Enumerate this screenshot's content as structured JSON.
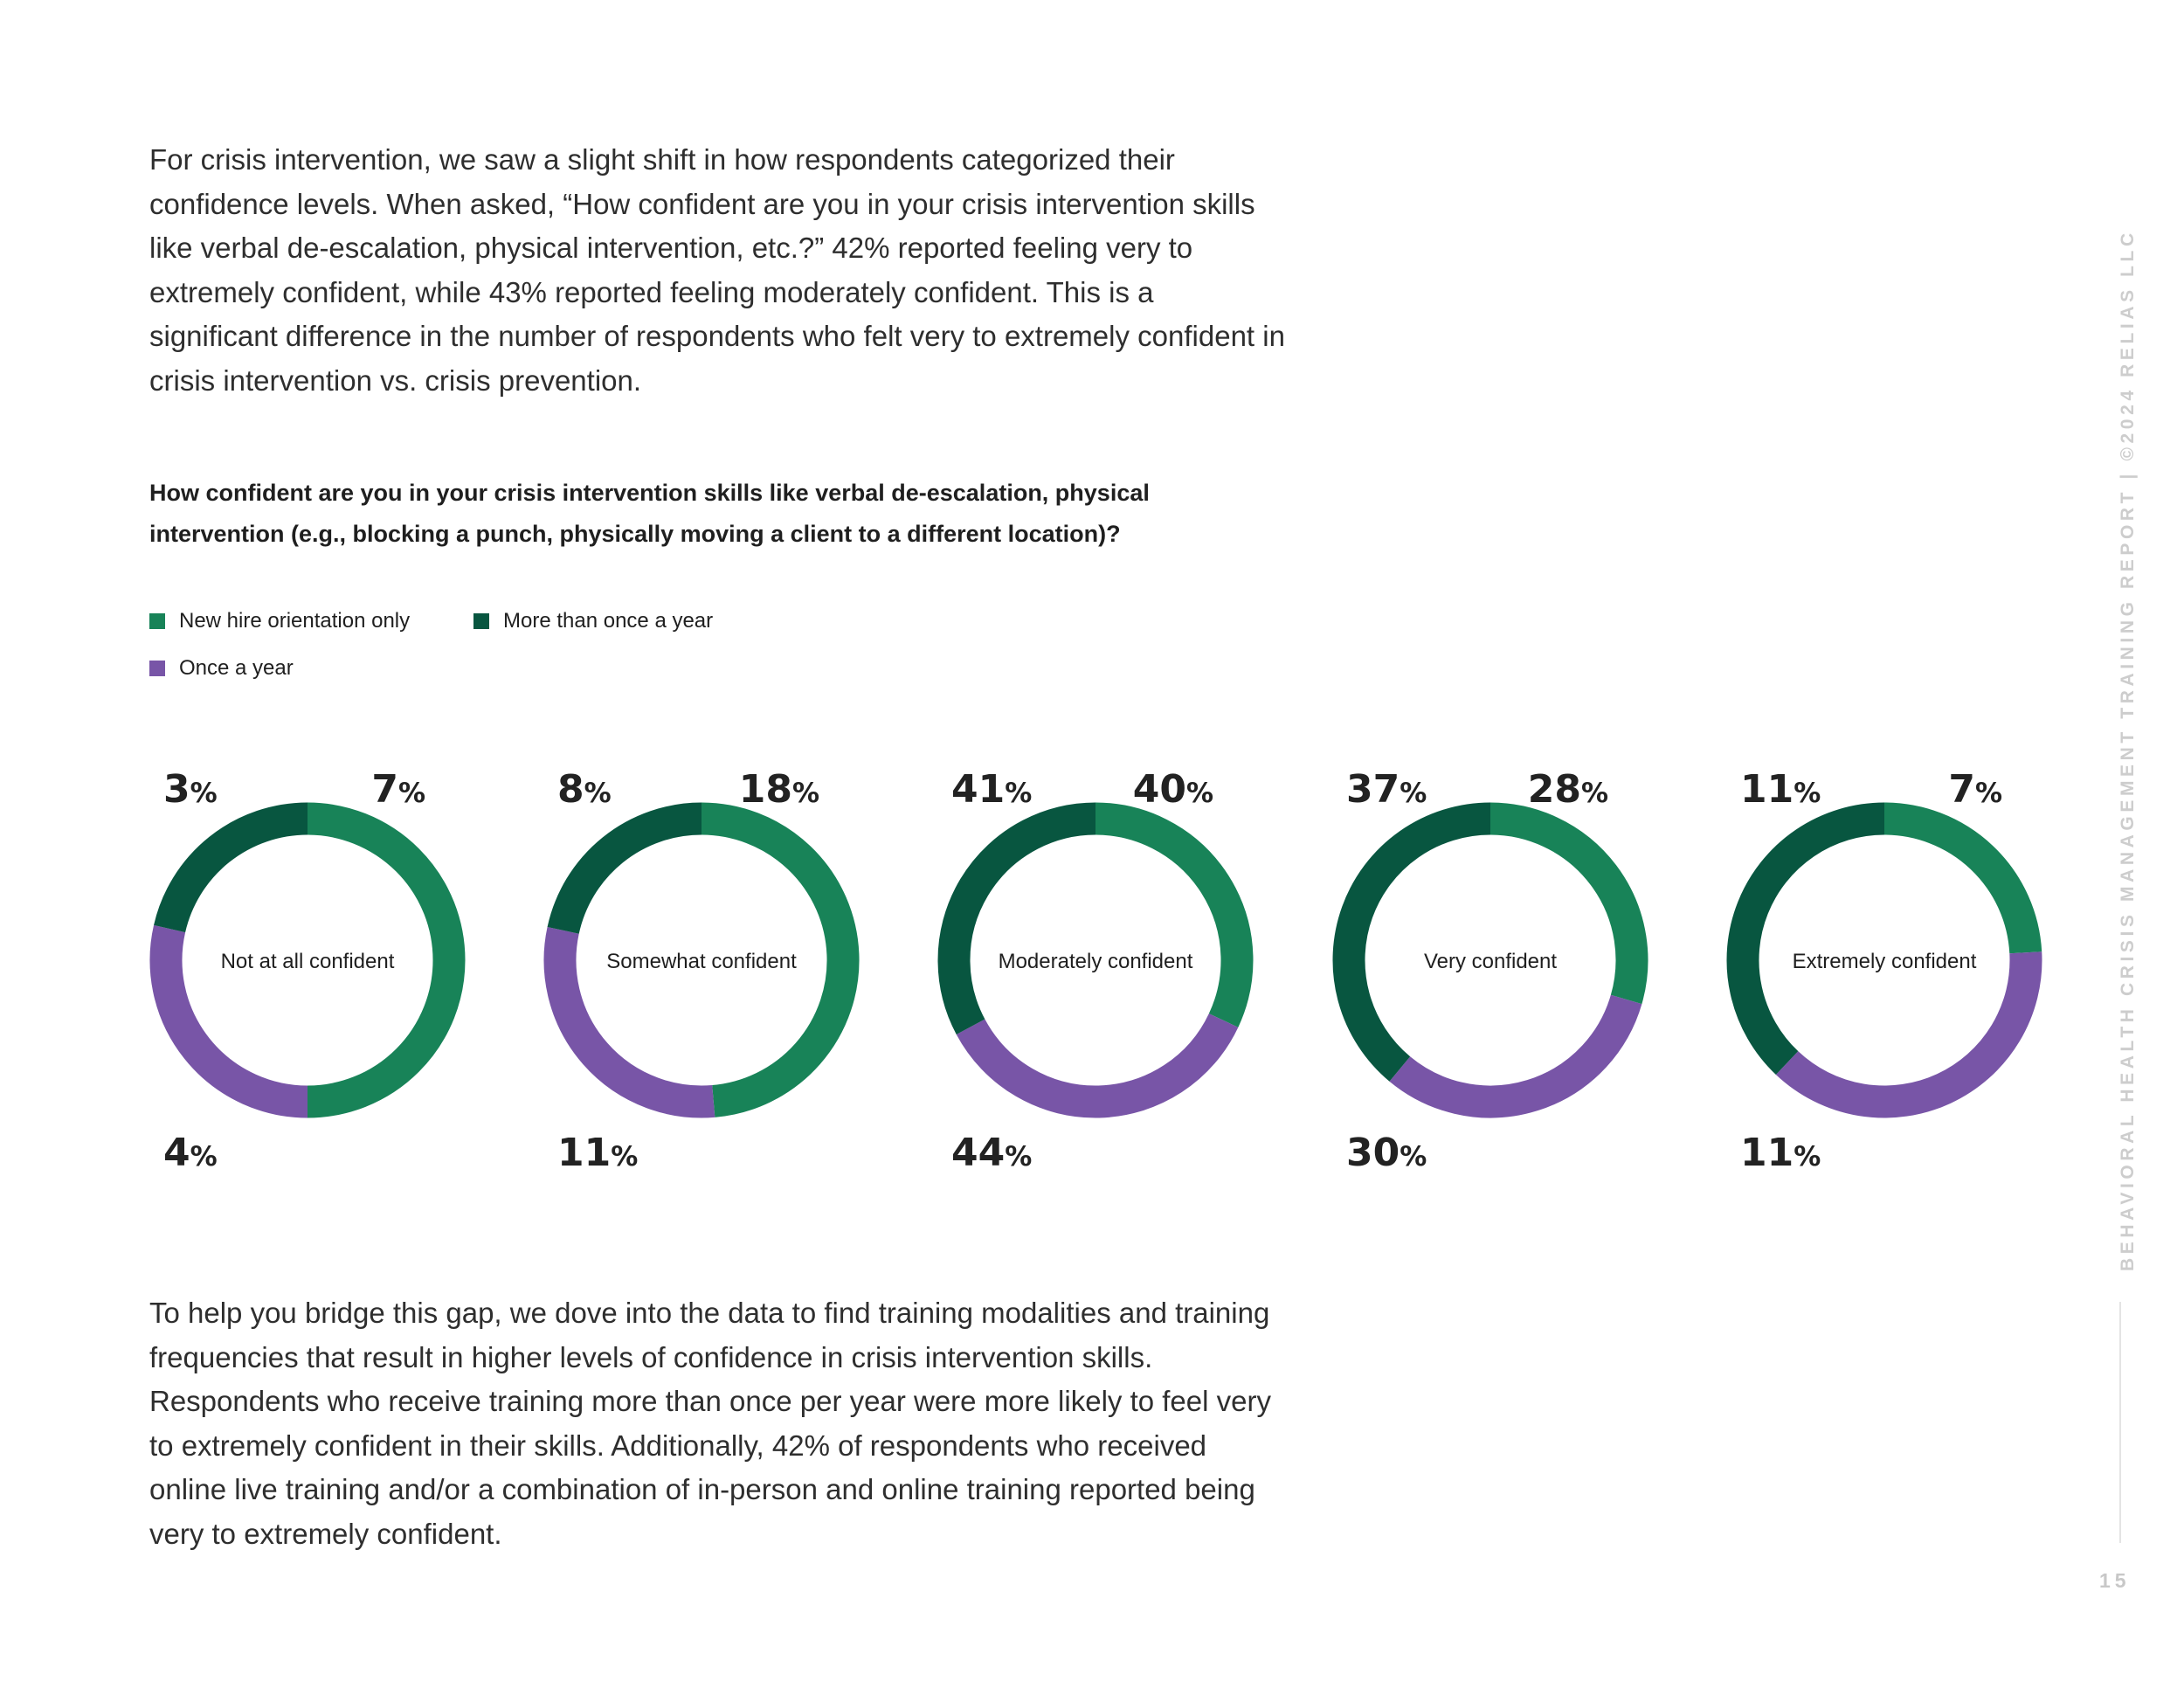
{
  "intro_text": "For crisis intervention, we saw a slight shift in how respondents categorized their confidence levels. When asked, “How confident are you in your crisis intervention skills like verbal de-escalation, physical intervention, etc.?” 42% reported feeling very to extremely confident, while 43% reported feeling moderately confident. This is a significant difference in the number of respondents who felt very to extremely confident in crisis intervention vs. crisis prevention.",
  "outro_text": "To help you bridge this gap, we dove into the data to find training modalities and training frequencies that result in higher levels of confidence in crisis intervention skills. Respondents who receive training more than once per year were more likely to feel very to extremely confident in their skills. Additionally, 42% of respondents who received online live training and/or a combination of in-person and online training reported being very to extremely confident.",
  "sidebar_text": "BEHAVIORAL HEALTH CRISIS MANAGEMENT TRAINING REPORT | ©2024 RELIAS LLC",
  "page_number": "15",
  "colors": {
    "new_hire": "#188358",
    "more_than_once": "#085640",
    "once_a_year": "#7855a7"
  },
  "chart_data": {
    "type": "donut",
    "title": "How confident are you in your crisis intervention skills like verbal de-escalation, physical intervention (e.g., blocking a punch, physically moving a client to a different location)?",
    "legend": [
      "New hire orientation only",
      "More than once a year",
      "Once a year"
    ],
    "categories": [
      "Not at all confident",
      "Somewhat confident",
      "Moderately confident",
      "Very confident",
      "Extremely confident"
    ],
    "series": [
      {
        "name": "New hire orientation only",
        "values": [
          7,
          18,
          40,
          28,
          7
        ]
      },
      {
        "name": "Once a year",
        "values": [
          4,
          11,
          44,
          30,
          11
        ]
      },
      {
        "name": "More than once a year",
        "values": [
          3,
          8,
          41,
          37,
          11
        ]
      }
    ],
    "value_suffix": "%"
  }
}
